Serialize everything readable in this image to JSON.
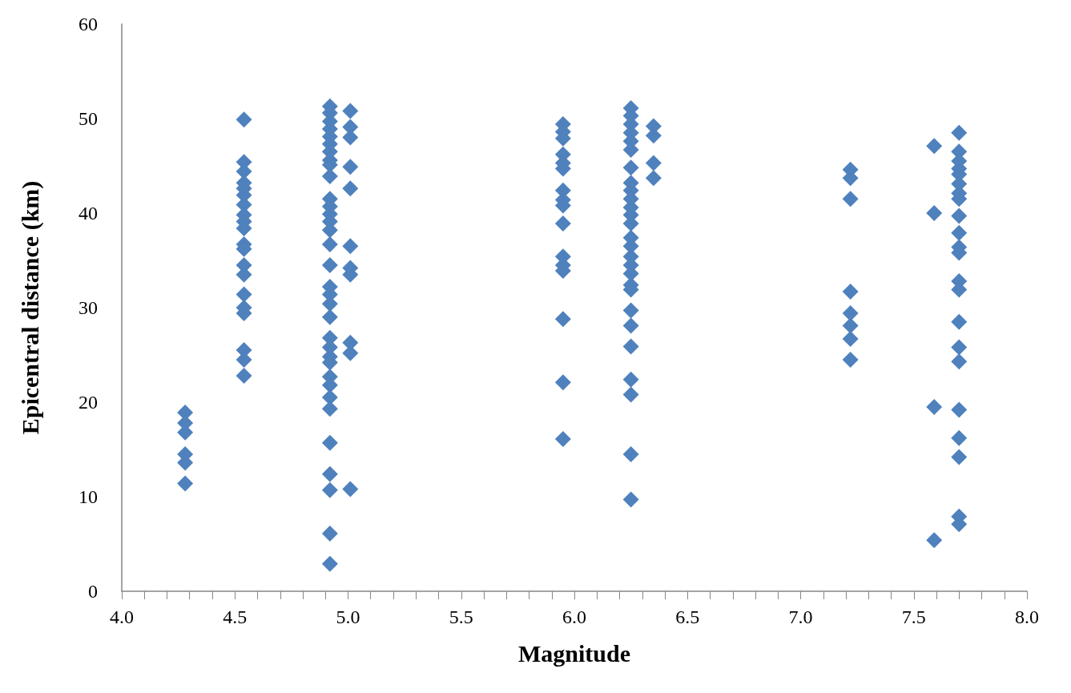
{
  "chart_data": {
    "type": "scatter",
    "xlabel": "Magnitude",
    "ylabel": "Epicentral distance (km)",
    "marker": "diamond",
    "grid": false,
    "xlim": [
      4,
      8
    ],
    "ylim": [
      0,
      60
    ],
    "xticks": [
      {
        "value": 4,
        "label": "4.0"
      },
      {
        "value": 4.1,
        "label": null
      },
      {
        "value": 4.2,
        "label": null
      },
      {
        "value": 4.3,
        "label": null
      },
      {
        "value": 4.4,
        "label": null
      },
      {
        "value": 4.5,
        "label": "4.5"
      },
      {
        "value": 4.6,
        "label": null
      },
      {
        "value": 4.7,
        "label": null
      },
      {
        "value": 4.8,
        "label": null
      },
      {
        "value": 4.9,
        "label": null
      },
      {
        "value": 5,
        "label": "5.0"
      },
      {
        "value": 5.1,
        "label": null
      },
      {
        "value": 5.2,
        "label": null
      },
      {
        "value": 5.3,
        "label": null
      },
      {
        "value": 5.4,
        "label": null
      },
      {
        "value": 5.5,
        "label": "5.5"
      },
      {
        "value": 5.6,
        "label": null
      },
      {
        "value": 5.7,
        "label": null
      },
      {
        "value": 5.8,
        "label": null
      },
      {
        "value": 5.9,
        "label": null
      },
      {
        "value": 6,
        "label": "6.0"
      },
      {
        "value": 6.1,
        "label": null
      },
      {
        "value": 6.2,
        "label": null
      },
      {
        "value": 6.3,
        "label": null
      },
      {
        "value": 6.4,
        "label": null
      },
      {
        "value": 6.5,
        "label": "6.5"
      },
      {
        "value": 6.6,
        "label": null
      },
      {
        "value": 6.7,
        "label": null
      },
      {
        "value": 6.8,
        "label": null
      },
      {
        "value": 6.9,
        "label": null
      },
      {
        "value": 7,
        "label": "7.0"
      },
      {
        "value": 7.1,
        "label": null
      },
      {
        "value": 7.2,
        "label": null
      },
      {
        "value": 7.3,
        "label": null
      },
      {
        "value": 7.4,
        "label": null
      },
      {
        "value": 7.5,
        "label": "7.5"
      },
      {
        "value": 7.6,
        "label": null
      },
      {
        "value": 7.7,
        "label": null
      },
      {
        "value": 7.8,
        "label": null
      },
      {
        "value": 7.9,
        "label": null
      },
      {
        "value": 8,
        "label": "8.0"
      }
    ],
    "yticks": [
      0,
      10,
      20,
      30,
      40,
      50,
      60
    ],
    "series": [
      {
        "color": "#4f81bd",
        "x": [
          4.28,
          4.28,
          4.28,
          4.28,
          4.28,
          4.28,
          4.54,
          4.54,
          4.54,
          4.54,
          4.54,
          4.54,
          4.54,
          4.54,
          4.54,
          4.54,
          4.54,
          4.54,
          4.54,
          4.54,
          4.54,
          4.54,
          4.54,
          4.54,
          4.54,
          4.54,
          4.92,
          4.92,
          4.92,
          4.92,
          4.92,
          4.92,
          4.92,
          4.92,
          4.92,
          4.92,
          4.92,
          4.92,
          4.92,
          4.92,
          4.92,
          4.92,
          4.92,
          4.92,
          4.92,
          4.92,
          4.92,
          4.92,
          4.92,
          4.92,
          4.92,
          4.92,
          4.92,
          4.92,
          4.92,
          4.92,
          4.92,
          4.92,
          4.92,
          4.92,
          5.01,
          5.01,
          5.01,
          5.01,
          5.01,
          5.01,
          5.01,
          5.01,
          5.01,
          5.01,
          5.01,
          5.95,
          5.95,
          5.95,
          5.95,
          5.95,
          5.95,
          5.95,
          5.95,
          5.95,
          5.95,
          5.95,
          5.95,
          5.95,
          5.95,
          5.95,
          5.95,
          6.25,
          6.25,
          6.25,
          6.25,
          6.25,
          6.25,
          6.25,
          6.25,
          6.25,
          6.25,
          6.25,
          6.25,
          6.25,
          6.25,
          6.25,
          6.25,
          6.25,
          6.25,
          6.25,
          6.25,
          6.25,
          6.25,
          6.25,
          6.25,
          6.25,
          6.25,
          6.25,
          6.35,
          6.35,
          6.35,
          6.35,
          7.22,
          7.22,
          7.22,
          7.22,
          7.22,
          7.22,
          7.22,
          7.22,
          7.59,
          7.59,
          7.59,
          7.59,
          7.7,
          7.7,
          7.7,
          7.7,
          7.7,
          7.7,
          7.7,
          7.7,
          7.7,
          7.7,
          7.7,
          7.7,
          7.7,
          7.7,
          7.7,
          7.7,
          7.7,
          7.7,
          7.7,
          7.7,
          7.7,
          7.7
        ],
        "values": [
          18.9,
          17.8,
          16.8,
          14.5,
          13.6,
          11.4,
          49.9,
          45.4,
          44.4,
          43.2,
          42.6,
          41.9,
          40.9,
          39.8,
          39.1,
          38.4,
          36.7,
          36.2,
          34.5,
          33.5,
          31.4,
          30,
          29.4,
          25.5,
          24.5,
          22.8,
          51.3,
          50.6,
          49.7,
          48.9,
          48.1,
          47.3,
          46.5,
          45.6,
          45.1,
          43.9,
          41.5,
          40.7,
          39.9,
          39.1,
          38.2,
          36.7,
          34.5,
          32.2,
          31.4,
          30.4,
          29,
          26.8,
          25.8,
          24.8,
          24.2,
          22.7,
          21.8,
          20.5,
          19.3,
          15.7,
          12.4,
          10.7,
          6.1,
          2.9,
          50.8,
          49.1,
          48,
          44.9,
          42.6,
          36.5,
          34.2,
          33.5,
          26.3,
          25.2,
          10.8,
          49.4,
          48.6,
          47.9,
          46.2,
          45.3,
          44.7,
          42.4,
          41.4,
          40.8,
          38.9,
          35.4,
          34.5,
          33.9,
          28.8,
          22.1,
          16.1,
          51.1,
          50.3,
          49.4,
          48.5,
          47.6,
          46.7,
          44.8,
          43.2,
          42.4,
          41.5,
          40.6,
          39.8,
          38.9,
          37.4,
          36.5,
          35.4,
          34.5,
          33.6,
          32.4,
          31.9,
          29.7,
          28.1,
          25.9,
          22.4,
          20.8,
          14.5,
          9.7,
          49.2,
          48.2,
          45.3,
          43.7,
          44.6,
          43.7,
          41.5,
          31.7,
          29.4,
          28.1,
          26.7,
          24.5,
          47.1,
          40,
          19.5,
          5.4,
          48.5,
          46.5,
          45.5,
          44.7,
          44.1,
          43.1,
          42.1,
          41.5,
          39.7,
          37.9,
          36.4,
          35.8,
          32.8,
          31.9,
          28.5,
          25.8,
          24.3,
          19.2,
          16.2,
          14.2,
          7.9,
          7.1
        ]
      }
    ]
  }
}
